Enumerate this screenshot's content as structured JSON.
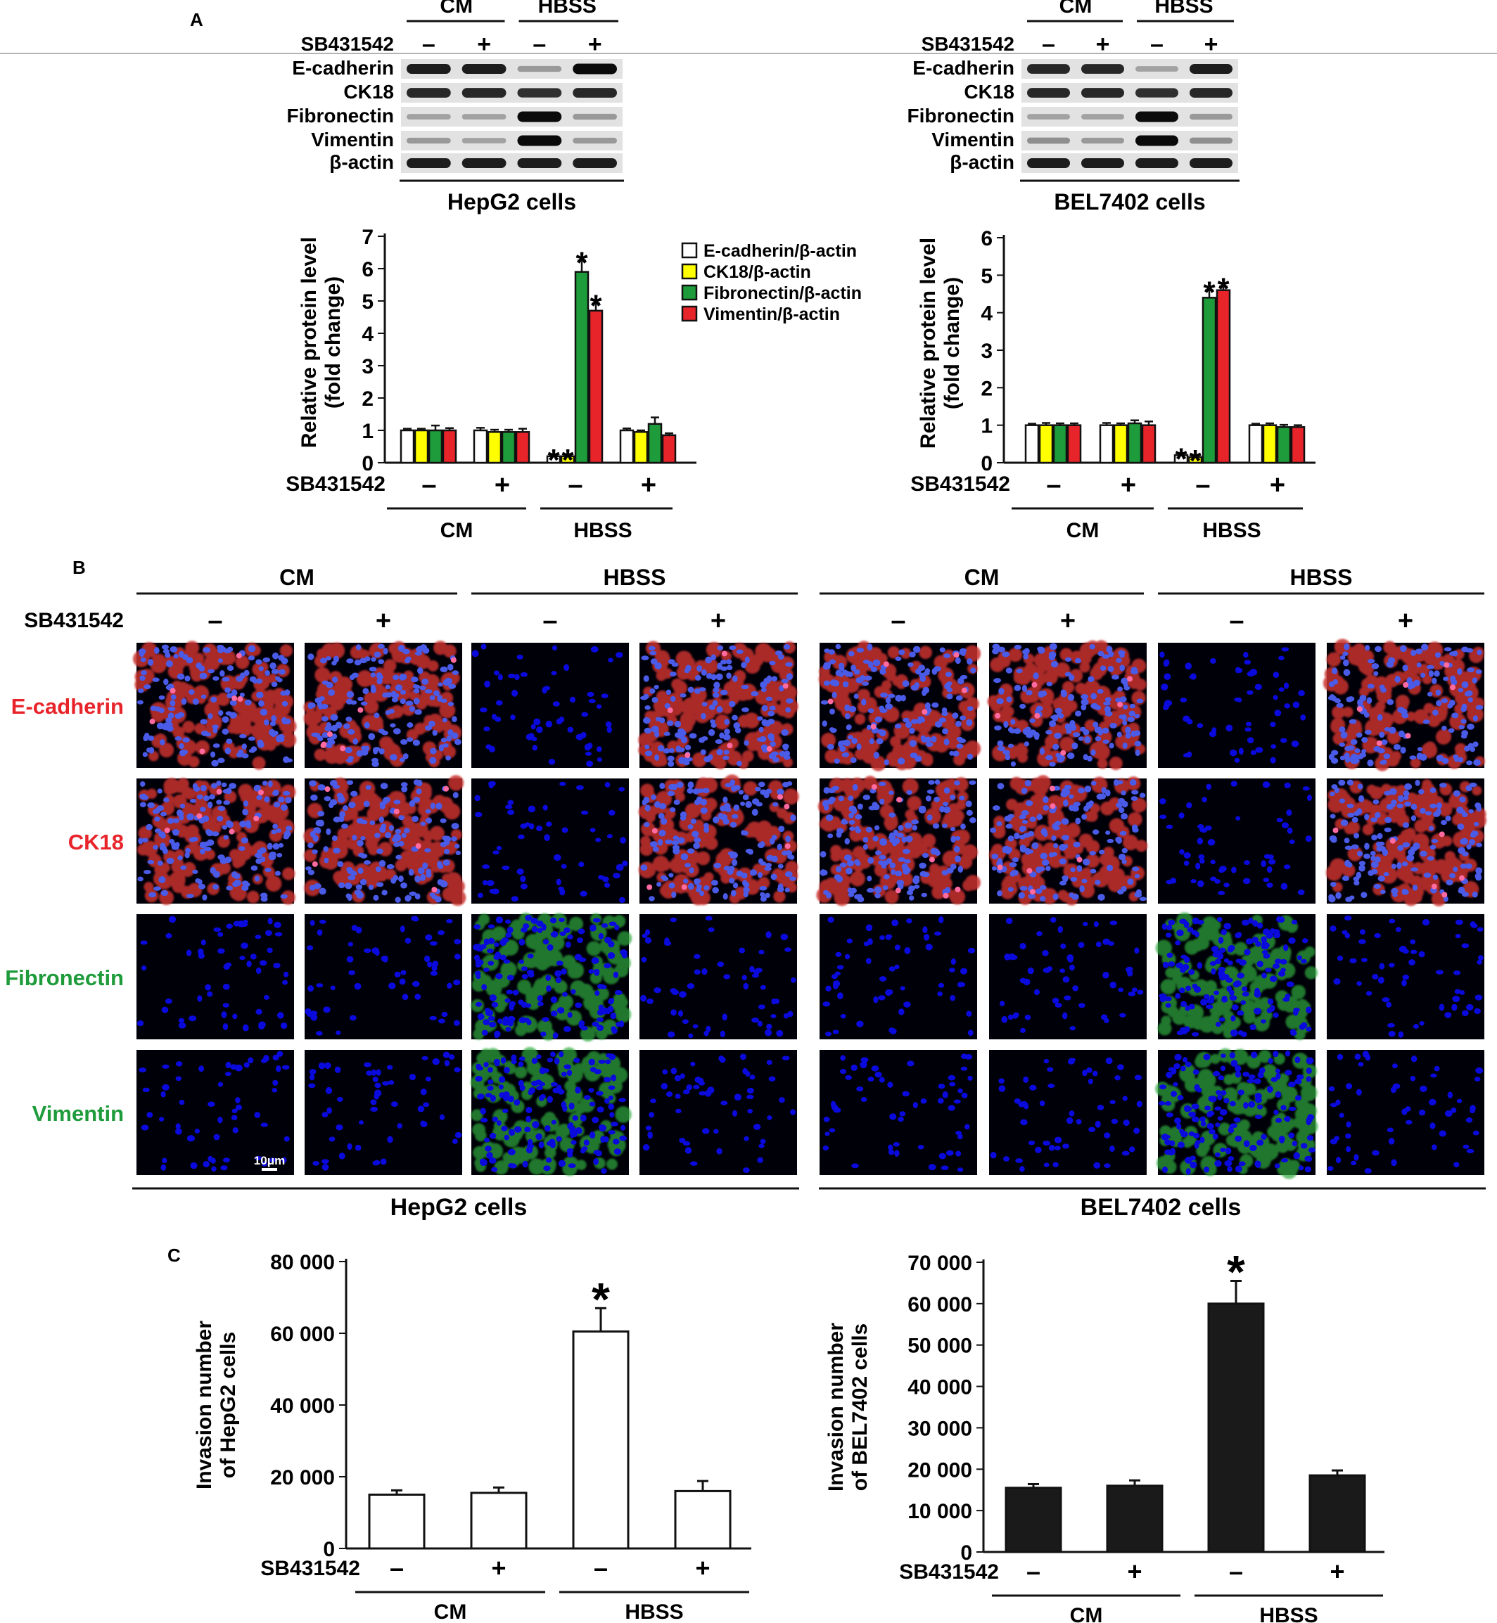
{
  "panel_labels": {
    "a": "A",
    "b": "B",
    "c": "C"
  },
  "colors": {
    "ecad": "#ffffff",
    "ck18": "#ffff00",
    "fn": "#1e9b3a",
    "vim": "#e8242b",
    "black": "#1a1a1a",
    "label_red": "#e8242b",
    "label_green": "#1e9b3a",
    "dapi": "#0a0adc",
    "cell_red": "#c8302e",
    "cell_green": "#2faa3e"
  },
  "common": {
    "inhibitor": "SB431542",
    "minus": "–",
    "plus": "+",
    "treatments": [
      "CM",
      "HBSS"
    ],
    "signs": [
      "–",
      "+",
      "–",
      "+"
    ]
  },
  "cell_lines": [
    "HepG2 cells",
    "BEL7402 cells"
  ],
  "blots": {
    "rows": [
      "E-cadherin",
      "CK18",
      "Fibronectin",
      "Vimentin",
      "β-actin"
    ],
    "hepg2_intensity": [
      [
        0.9,
        0.9,
        0.25,
        1.0
      ],
      [
        0.85,
        0.85,
        0.8,
        0.85
      ],
      [
        0.2,
        0.2,
        1.0,
        0.25
      ],
      [
        0.25,
        0.2,
        1.0,
        0.25
      ],
      [
        0.9,
        0.9,
        0.9,
        0.9
      ]
    ],
    "bel7402_intensity": [
      [
        0.85,
        0.85,
        0.2,
        0.9
      ],
      [
        0.85,
        0.85,
        0.8,
        0.85
      ],
      [
        0.2,
        0.2,
        1.0,
        0.25
      ],
      [
        0.3,
        0.25,
        1.0,
        0.3
      ],
      [
        0.9,
        0.9,
        0.9,
        0.9
      ]
    ]
  },
  "legend": [
    "E-cadherin/β-actin",
    "CK18/β-actin",
    "Fibronectin/β-actin",
    "Vimentin/β-actin"
  ],
  "if_rows": [
    "E-cadherin",
    "CK18",
    "Fibronectin",
    "Vimentin"
  ],
  "if_stain": [
    [
      "red",
      "red",
      "none",
      "red"
    ],
    [
      "red",
      "red",
      "none",
      "red"
    ],
    [
      "none",
      "none",
      "green",
      "none"
    ],
    [
      "none",
      "none",
      "green",
      "none"
    ]
  ],
  "scale_bar": "10μm",
  "chart_data": [
    {
      "type": "bar",
      "ylabel": [
        "Relative protein level",
        "(fold change)"
      ],
      "ylim": [
        0,
        7
      ],
      "yticks": [
        0,
        1,
        2,
        3,
        4,
        5,
        6,
        7
      ],
      "groups": [
        "–",
        "+",
        "–",
        "+"
      ],
      "series": [
        {
          "name": "E-cadherin/β-actin",
          "values": [
            1.0,
            1.0,
            0.2,
            1.0
          ],
          "errors": [
            0.05,
            0.08,
            0.05,
            0.06
          ],
          "stars": [
            false,
            false,
            true,
            false
          ]
        },
        {
          "name": "CK18/β-actin",
          "values": [
            1.0,
            0.95,
            0.2,
            0.95
          ],
          "errors": [
            0.05,
            0.07,
            0.05,
            0.05
          ],
          "stars": [
            false,
            false,
            true,
            false
          ]
        },
        {
          "name": "Fibronectin/β-actin",
          "values": [
            1.0,
            0.95,
            5.9,
            1.2
          ],
          "errors": [
            0.15,
            0.07,
            0.35,
            0.2
          ],
          "stars": [
            false,
            false,
            true,
            false
          ]
        },
        {
          "name": "Vimentin/β-actin",
          "values": [
            1.0,
            0.95,
            4.7,
            0.85
          ],
          "errors": [
            0.07,
            0.1,
            0.22,
            0.06
          ],
          "stars": [
            false,
            false,
            true,
            false
          ]
        }
      ]
    },
    {
      "type": "bar",
      "ylabel": [
        "Relative protein level",
        "(fold change)"
      ],
      "ylim": [
        0,
        6
      ],
      "yticks": [
        0,
        1,
        2,
        3,
        4,
        5,
        6
      ],
      "groups": [
        "–",
        "+",
        "–",
        "+"
      ],
      "series": [
        {
          "name": "E-cadherin/β-actin",
          "values": [
            1.0,
            1.0,
            0.2,
            1.0
          ],
          "errors": [
            0.04,
            0.06,
            0.05,
            0.04
          ],
          "stars": [
            false,
            false,
            true,
            false
          ]
        },
        {
          "name": "CK18/β-actin",
          "values": [
            1.0,
            1.0,
            0.15,
            1.0
          ],
          "errors": [
            0.06,
            0.05,
            0.04,
            0.05
          ],
          "stars": [
            false,
            false,
            true,
            false
          ]
        },
        {
          "name": "Fibronectin/β-actin",
          "values": [
            1.0,
            1.05,
            4.4,
            0.95
          ],
          "errors": [
            0.05,
            0.08,
            0.2,
            0.06
          ],
          "stars": [
            false,
            false,
            true,
            false
          ]
        },
        {
          "name": "Vimentin/β-actin",
          "values": [
            1.0,
            1.0,
            4.6,
            0.95
          ],
          "errors": [
            0.05,
            0.1,
            0.1,
            0.05
          ],
          "stars": [
            false,
            false,
            true,
            false
          ]
        }
      ]
    },
    {
      "type": "bar",
      "ylabel": [
        "Invasion number",
        "of HepG2 cells"
      ],
      "ylim": [
        0,
        80000
      ],
      "yticks": [
        0,
        20000,
        40000,
        60000,
        80000
      ],
      "ytick_labels": [
        "0",
        "20 000",
        "40 000",
        "60 000",
        "80 000"
      ],
      "groups": [
        "–",
        "+",
        "–",
        "+"
      ],
      "values": [
        15000,
        15500,
        60500,
        16000
      ],
      "errors": [
        1200,
        1500,
        6500,
        2800
      ],
      "stars": [
        false,
        false,
        true,
        false
      ],
      "bar_color": "#ffffff"
    },
    {
      "type": "bar",
      "ylabel": [
        "Invasion number",
        "of BEL7402 cells"
      ],
      "ylim": [
        0,
        70000
      ],
      "yticks": [
        0,
        10000,
        20000,
        30000,
        40000,
        50000,
        60000,
        70000
      ],
      "ytick_labels": [
        "0",
        "10 000",
        "20 000",
        "30 000",
        "40 000",
        "50 000",
        "60 000",
        "70 000"
      ],
      "groups": [
        "–",
        "+",
        "–",
        "+"
      ],
      "values": [
        15500,
        16000,
        60000,
        18500
      ],
      "errors": [
        900,
        1300,
        5500,
        1200
      ],
      "stars": [
        false,
        false,
        true,
        false
      ],
      "bar_color": "#1a1a1a"
    }
  ]
}
